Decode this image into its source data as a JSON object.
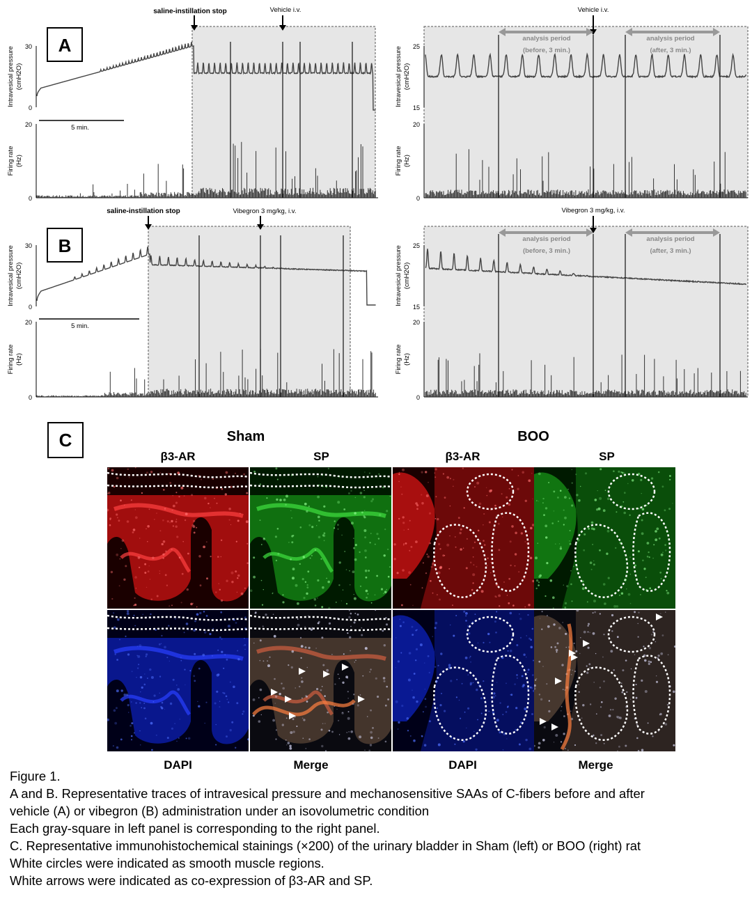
{
  "panels": {
    "A": {
      "tag": "A",
      "left": {
        "stop_label": "saline-instillation stop",
        "drug_label": "Vehicle  i.v.",
        "pressure_axis": [
          "Intravesical pressure",
          "(cmH2O)"
        ],
        "pressure_ticks": [
          "30",
          "0"
        ],
        "firing_axis": [
          "Firing rate",
          "(Hz)"
        ],
        "firing_ticks": [
          "20",
          "0"
        ],
        "scale_label": "5 min."
      },
      "right": {
        "drug_label": "Vehicle  i.v.",
        "before_label": [
          "analysis period",
          "(before, 3 min.)"
        ],
        "after_label": [
          "analysis period",
          "(after, 3 min.)"
        ],
        "pressure_axis": [
          "Intravesical pressure",
          "(cmH2O)"
        ],
        "pressure_ticks": [
          "25",
          "15"
        ],
        "firing_axis": [
          "Firing rate",
          "(Hz)"
        ],
        "firing_ticks": [
          "20",
          "0"
        ]
      }
    },
    "B": {
      "tag": "B",
      "left": {
        "stop_label": "saline-instillation stop",
        "drug_label": "Vibegron  3  mg/kg,  i.v.",
        "pressure_axis": [
          "Intravesical pressure",
          "(cmH2O)"
        ],
        "pressure_ticks": [
          "30",
          "0"
        ],
        "firing_axis": [
          "Firing rate",
          "(Hz)"
        ],
        "firing_ticks": [
          "20",
          "0"
        ],
        "scale_label": "5 min."
      },
      "right": {
        "drug_label": "Vibegron  3  mg/kg,  i.v.",
        "before_label": [
          "analysis period",
          "(before, 3 min.)"
        ],
        "after_label": [
          "analysis period",
          "(after, 3 min.)"
        ],
        "pressure_axis": [
          "Intravesical pressure",
          "(cmH2O)"
        ],
        "pressure_ticks": [
          "25",
          "15"
        ],
        "firing_axis": [
          "Firing rate",
          "(Hz)"
        ],
        "firing_ticks": [
          "20",
          "0"
        ]
      }
    }
  },
  "panel_c": {
    "tag": "C",
    "group_sham": "Sham",
    "group_boo": "BOO",
    "top_labels": [
      "β3-AR",
      "SP",
      "β3-AR",
      "SP"
    ],
    "bottom_labels": [
      "DAPI",
      "Merge",
      "DAPI",
      "Merge"
    ]
  },
  "caption": {
    "line1": "Figure 1.",
    "line2": "A and B. Representative traces of intravesical pressure and mechanosensitive SAAs of C-fibers before and after",
    "line3": "vehicle (A) or vibegron (B) administration under an isovolumetric condition",
    "line4": "Each gray-square in left panel is corresponding to the right panel.",
    "line5": "C. Representative immunohistochemical stainings (×200) of the urinary bladder in Sham (left) or BOO (right) rat",
    "line6": "White circles were indicated as smooth muscle regions.",
    "line7": "White arrows were indicated as co-expression of β3-AR and SP."
  }
}
